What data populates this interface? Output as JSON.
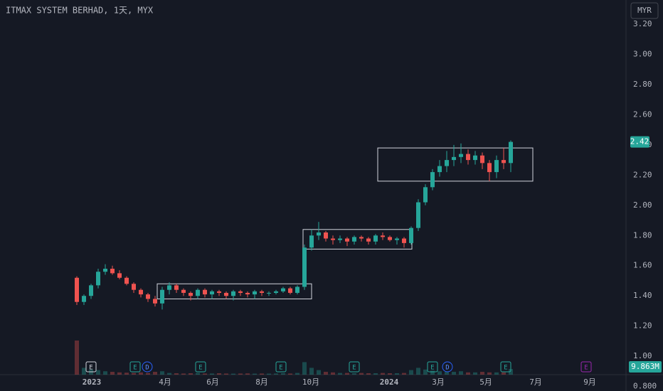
{
  "chart_data": {
    "type": "candlestick",
    "title": "ITMAX SYSTEM BERHAD, 1天, MYX",
    "currency": "MYR",
    "open": [
      1.52,
      1.36,
      1.4,
      1.47,
      1.56,
      1.58,
      1.55,
      1.52,
      1.48,
      1.44,
      1.41,
      1.38,
      1.35,
      1.44,
      1.47,
      1.44,
      1.42,
      1.4,
      1.44,
      1.41,
      1.43,
      1.42,
      1.4,
      1.43,
      1.42,
      1.41,
      1.43,
      1.42,
      1.42,
      1.43,
      1.45,
      1.42,
      1.46,
      1.72,
      1.8,
      1.82,
      1.78,
      1.77,
      1.78,
      1.76,
      1.79,
      1.78,
      1.76,
      1.8,
      1.79,
      1.77,
      1.78,
      1.75,
      1.85,
      2.02,
      2.12,
      2.22,
      2.26,
      2.3,
      2.32,
      2.34,
      2.3,
      2.33,
      2.28,
      2.22,
      2.3,
      2.28
    ],
    "high": [
      1.53,
      1.41,
      1.48,
      1.58,
      1.61,
      1.6,
      1.57,
      1.53,
      1.49,
      1.45,
      1.42,
      1.4,
      1.46,
      1.49,
      1.48,
      1.45,
      1.43,
      1.45,
      1.45,
      1.44,
      1.44,
      1.43,
      1.44,
      1.44,
      1.43,
      1.44,
      1.44,
      1.43,
      1.44,
      1.46,
      1.46,
      1.47,
      1.74,
      1.84,
      1.89,
      1.83,
      1.8,
      1.8,
      1.79,
      1.8,
      1.8,
      1.79,
      1.81,
      1.82,
      1.8,
      1.79,
      1.79,
      1.86,
      2.04,
      2.14,
      2.24,
      2.3,
      2.36,
      2.4,
      2.41,
      2.37,
      2.36,
      2.35,
      2.3,
      2.33,
      2.38,
      2.43
    ],
    "low": [
      1.34,
      1.34,
      1.38,
      1.45,
      1.54,
      1.54,
      1.51,
      1.47,
      1.42,
      1.39,
      1.36,
      1.33,
      1.31,
      1.41,
      1.42,
      1.4,
      1.37,
      1.38,
      1.39,
      1.38,
      1.4,
      1.38,
      1.37,
      1.4,
      1.39,
      1.38,
      1.4,
      1.4,
      1.41,
      1.42,
      1.41,
      1.41,
      1.44,
      1.7,
      1.77,
      1.76,
      1.74,
      1.75,
      1.73,
      1.74,
      1.76,
      1.74,
      1.74,
      1.77,
      1.76,
      1.74,
      1.72,
      1.74,
      1.83,
      2.0,
      2.1,
      2.19,
      2.22,
      2.26,
      2.28,
      2.27,
      2.27,
      2.24,
      2.16,
      2.18,
      2.24,
      2.22
    ],
    "close": [
      1.36,
      1.4,
      1.47,
      1.56,
      1.58,
      1.55,
      1.52,
      1.48,
      1.44,
      1.41,
      1.38,
      1.35,
      1.44,
      1.47,
      1.44,
      1.42,
      1.4,
      1.44,
      1.41,
      1.43,
      1.42,
      1.4,
      1.43,
      1.42,
      1.41,
      1.43,
      1.42,
      1.42,
      1.43,
      1.45,
      1.42,
      1.46,
      1.72,
      1.8,
      1.82,
      1.78,
      1.77,
      1.78,
      1.76,
      1.79,
      1.78,
      1.76,
      1.8,
      1.79,
      1.77,
      1.78,
      1.75,
      1.85,
      2.02,
      2.12,
      2.22,
      2.26,
      2.3,
      2.32,
      2.34,
      2.3,
      2.33,
      2.28,
      2.22,
      2.3,
      2.28,
      2.42
    ],
    "volume": [
      60000000,
      12000000,
      9000000,
      8000000,
      6000000,
      5000000,
      4000000,
      3500000,
      3000000,
      4000000,
      3000000,
      5000000,
      6000000,
      3000000,
      2500000,
      2000000,
      2500000,
      3000000,
      2000000,
      2000000,
      2500000,
      2000000,
      1800000,
      2000000,
      2200000,
      1800000,
      2000000,
      1800000,
      2000000,
      2500000,
      2000000,
      3000000,
      22000000,
      12000000,
      8000000,
      5000000,
      4000000,
      3000000,
      3000000,
      2500000,
      3000000,
      2500000,
      2500000,
      3000000,
      2500000,
      2500000,
      3000000,
      8000000,
      12000000,
      9000000,
      7000000,
      6000000,
      5000000,
      5000000,
      6000000,
      4000000,
      4000000,
      5000000,
      4000000,
      4000000,
      4000000,
      9863000
    ],
    "volume_labels": {
      "61": "9.863M"
    },
    "vlim": [
      0,
      100000000
    ],
    "xlim": [
      -10.8,
      77.2
    ],
    "xticks": [
      {
        "value": 2.1,
        "label": "2023"
      },
      {
        "value": 12.4,
        "label": "4月"
      },
      {
        "value": 19.1,
        "label": "6月"
      },
      {
        "value": 26,
        "label": "8月"
      },
      {
        "value": 32.9,
        "label": "10月"
      },
      {
        "value": 43.9,
        "label": "2024"
      },
      {
        "value": 50.8,
        "label": "3月"
      },
      {
        "value": 57.5,
        "label": "5月"
      },
      {
        "value": 64.5,
        "label": "7月"
      },
      {
        "value": 72.1,
        "label": "9月"
      }
    ],
    "ylim": [
      0.77,
      3.36
    ],
    "yticks": [
      {
        "value": 0.8,
        "label": "0.800"
      },
      {
        "value": 1,
        "label": "1.00"
      },
      {
        "value": 1.2,
        "label": "1.20"
      },
      {
        "value": 1.4,
        "label": "1.40"
      },
      {
        "value": 1.6,
        "label": "1.60"
      },
      {
        "value": 1.8,
        "label": "1.80"
      },
      {
        "value": 2,
        "label": "2.00"
      },
      {
        "value": 2.2,
        "label": "2.20"
      },
      {
        "value": 2.4,
        "label": "2.40"
      },
      {
        "value": 2.6,
        "label": "2.60"
      },
      {
        "value": 2.8,
        "label": "2.80"
      },
      {
        "value": 3,
        "label": "3.00"
      },
      {
        "value": 3.2,
        "label": "3.20"
      }
    ],
    "last_price_label": "2.42",
    "boxes": [
      {
        "x0": 11.3,
        "x1": 33,
        "y0": 1.38,
        "y1": 1.48
      },
      {
        "x0": 31.8,
        "x1": 47.1,
        "y0": 1.71,
        "y1": 1.84
      },
      {
        "x0": 42.3,
        "x1": 64.1,
        "y0": 2.16,
        "y1": 2.38
      }
    ],
    "events": [
      {
        "x": 2,
        "label": "E"
      },
      {
        "x": 8.2,
        "label": "E"
      },
      {
        "x": 9.9,
        "label": "D"
      },
      {
        "x": 17.4,
        "label": "E"
      },
      {
        "x": 28.7,
        "label": "E"
      },
      {
        "x": 39,
        "label": "E"
      },
      {
        "x": 50,
        "label": "E"
      },
      {
        "x": 52.1,
        "label": "D"
      },
      {
        "x": 60.3,
        "label": "E"
      },
      {
        "x": 71.6,
        "label": "E"
      }
    ],
    "up_color": "#26a69a",
    "down_color": "#ef5350"
  }
}
